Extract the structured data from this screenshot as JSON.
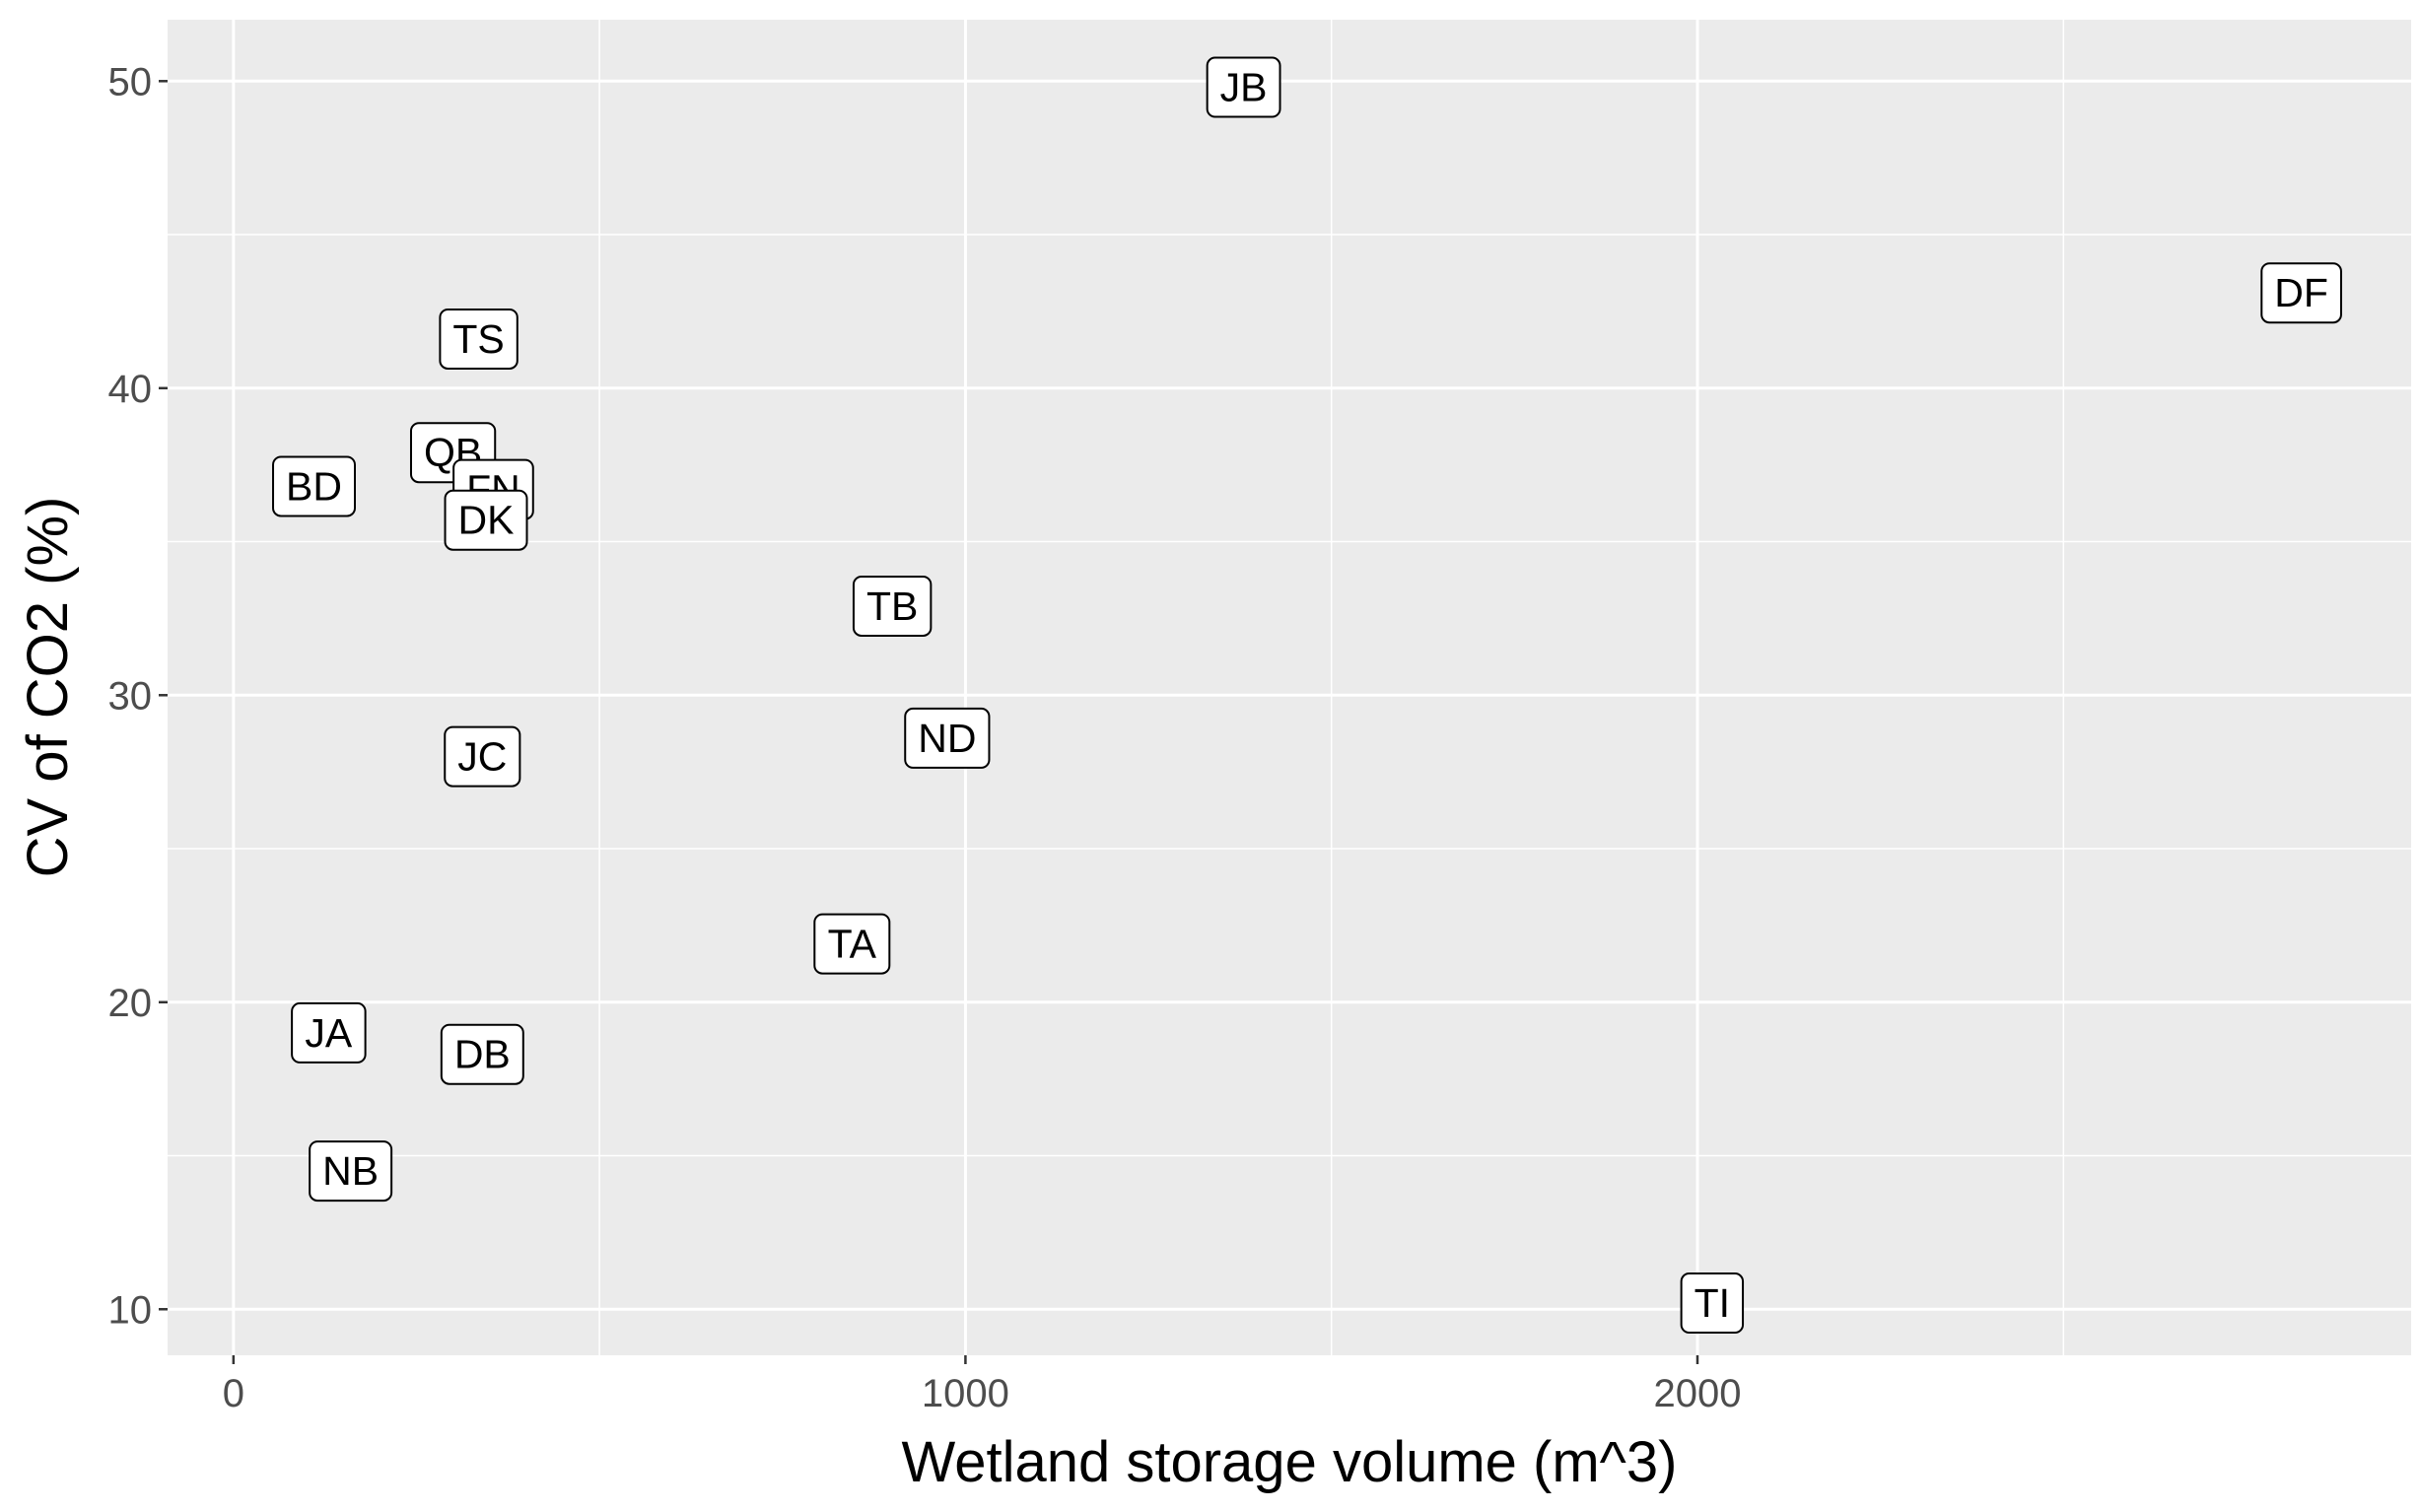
{
  "chart_data": {
    "type": "scatter",
    "xlabel": "Wetland storage volume (m^3)",
    "ylabel": "CV of CO2 (%)",
    "xlim": [
      -90,
      2975
    ],
    "ylim": [
      8.5,
      52
    ],
    "x_ticks": [
      0,
      1000,
      2000
    ],
    "y_ticks": [
      10,
      20,
      30,
      40,
      50
    ],
    "x_minor_ticks": [
      500,
      1500,
      2500
    ],
    "y_minor_ticks": [
      15,
      25,
      35,
      45
    ],
    "grid": true,
    "legend": "none",
    "colors": {
      "panel_background": "#ebebeb",
      "grid_line": "#ffffff",
      "label_fill": "#ffffff",
      "label_border": "#000000",
      "tick_label": "#4d4d4d"
    },
    "points": [
      {
        "label": "JB",
        "x": 1380,
        "y": 49.8
      },
      {
        "label": "DF",
        "x": 2825,
        "y": 43.1
      },
      {
        "label": "TS",
        "x": 335,
        "y": 41.6
      },
      {
        "label": "QB",
        "x": 300,
        "y": 37.9
      },
      {
        "label": "BD",
        "x": 110,
        "y": 36.8
      },
      {
        "label": "FN",
        "x": 355,
        "y": 36.7
      },
      {
        "label": "DK",
        "x": 345,
        "y": 35.7
      },
      {
        "label": "TB",
        "x": 900,
        "y": 32.9
      },
      {
        "label": "ND",
        "x": 975,
        "y": 28.6
      },
      {
        "label": "JC",
        "x": 340,
        "y": 28.0
      },
      {
        "label": "TA",
        "x": 845,
        "y": 21.9
      },
      {
        "label": "JA",
        "x": 130,
        "y": 19.0
      },
      {
        "label": "DB",
        "x": 340,
        "y": 18.3
      },
      {
        "label": "NB",
        "x": 160,
        "y": 14.5
      },
      {
        "label": "TI",
        "x": 2020,
        "y": 10.2
      }
    ]
  }
}
